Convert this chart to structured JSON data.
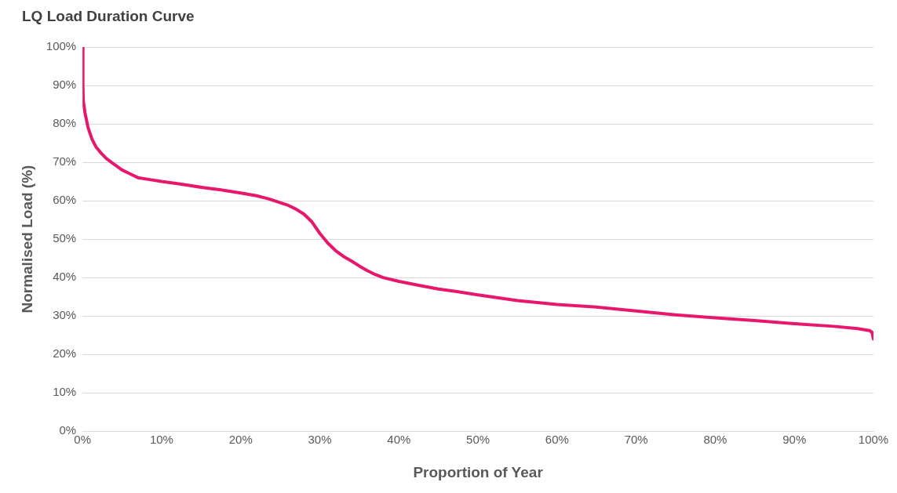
{
  "chart_data": {
    "type": "line",
    "title": "LQ Load Duration Curve",
    "xlabel": "Proportion of Year",
    "ylabel": "Normalised Load (%)",
    "series": [
      {
        "color": "#e8176b",
        "x": [
          0,
          0.05,
          0.1,
          0.3,
          0.7,
          1.2,
          1.7,
          2.3,
          3,
          4,
          5,
          6,
          7,
          8.5,
          10,
          12.5,
          15,
          17.5,
          20,
          22,
          23.5,
          25,
          26,
          27,
          28,
          29,
          30,
          31,
          32,
          33,
          34,
          35,
          36,
          37,
          38,
          40,
          42.5,
          45,
          47.5,
          50,
          55,
          60,
          65,
          70,
          75,
          80,
          85,
          90,
          95,
          98,
          99.5,
          99.8,
          100
        ],
        "values": [
          100,
          90,
          86,
          83,
          79,
          76,
          74,
          72.5,
          71,
          69.5,
          68,
          67,
          66,
          65.5,
          65,
          64.3,
          63.5,
          62.8,
          62,
          61.3,
          60.5,
          59.5,
          58.8,
          57.8,
          56.5,
          54.5,
          51.5,
          49,
          47,
          45.5,
          44.3,
          43,
          41.8,
          40.8,
          40,
          39,
          38,
          37,
          36.3,
          35.5,
          34,
          33,
          32.3,
          31.3,
          30.3,
          29.5,
          28.8,
          28,
          27.3,
          26.7,
          26.2,
          25.8,
          24
        ]
      }
    ],
    "xlim": [
      0,
      100
    ],
    "xticks": [
      {
        "value": 0,
        "label": "0%"
      },
      {
        "value": 10,
        "label": "10%"
      },
      {
        "value": 20,
        "label": "20%"
      },
      {
        "value": 30,
        "label": "30%"
      },
      {
        "value": 40,
        "label": "40%"
      },
      {
        "value": 50,
        "label": "50%"
      },
      {
        "value": 60,
        "label": "60%"
      },
      {
        "value": 70,
        "label": "70%"
      },
      {
        "value": 80,
        "label": "80%"
      },
      {
        "value": 90,
        "label": "90%"
      },
      {
        "value": 100,
        "label": "100%"
      }
    ],
    "ylim": [
      0,
      100
    ],
    "yticks": [
      {
        "value": 0,
        "label": "0%"
      },
      {
        "value": 10,
        "label": "10%"
      },
      {
        "value": 20,
        "label": "20%"
      },
      {
        "value": 30,
        "label": "30%"
      },
      {
        "value": 40,
        "label": "40%"
      },
      {
        "value": 50,
        "label": "50%"
      },
      {
        "value": 60,
        "label": "60%"
      },
      {
        "value": 70,
        "label": "70%"
      },
      {
        "value": 80,
        "label": "80%"
      },
      {
        "value": 90,
        "label": "90%"
      },
      {
        "value": 100,
        "label": "100%"
      }
    ],
    "grid": "y",
    "legend": false,
    "marker": "none",
    "line_style": "solid"
  }
}
